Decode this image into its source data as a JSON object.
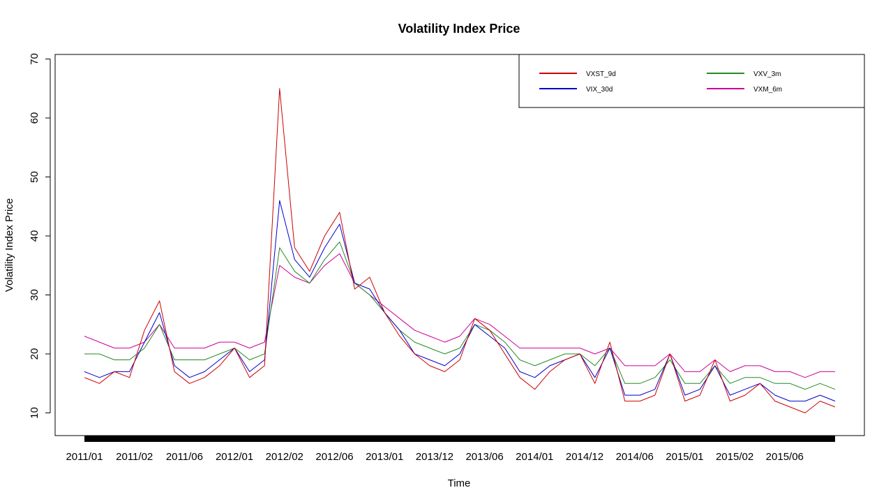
{
  "chart_data": {
    "type": "line",
    "title": "Volatility Index Price",
    "xlabel": "Time",
    "ylabel": "Volatility Index Price",
    "ylim": [
      5,
      70
    ],
    "yticks": [
      10,
      20,
      30,
      40,
      50,
      60,
      70
    ],
    "x_tick_labels": [
      "2011/01",
      "2011/02",
      "2011/06",
      "2012/01",
      "2012/02",
      "2012/06",
      "2013/01",
      "2013/12",
      "2013/06",
      "2014/01",
      "2014/12",
      "2014/06",
      "2015/01",
      "2015/02",
      "2015/06"
    ],
    "legend_position": "top-right",
    "grid": false,
    "colors": {
      "VXST_9d": "#cc0000",
      "VIX_30d": "#0000cc",
      "VXV_3m": "#228b22",
      "VXM_6m": "#cc0099"
    },
    "x": [
      0,
      2,
      4,
      6,
      8,
      10,
      12,
      14,
      16,
      18,
      20,
      22,
      24,
      26,
      28,
      30,
      32,
      34,
      36,
      38,
      40,
      42,
      44,
      46,
      48,
      50,
      52,
      54,
      56,
      58,
      60,
      62,
      64,
      66,
      68,
      70,
      72,
      74,
      76,
      78,
      80,
      82,
      84,
      86,
      88,
      90,
      92,
      94,
      96,
      98,
      100
    ],
    "series": [
      {
        "name": "VXST_9d",
        "values": [
          16,
          15,
          17,
          16,
          24,
          29,
          17,
          15,
          16,
          18,
          21,
          16,
          18,
          65,
          38,
          34,
          40,
          44,
          31,
          33,
          27,
          23,
          20,
          18,
          17,
          19,
          26,
          24,
          20,
          16,
          14,
          17,
          19,
          20,
          15,
          22,
          12,
          12,
          13,
          20,
          12,
          13,
          19,
          12,
          13,
          15,
          12,
          11,
          10,
          12,
          11
        ]
      },
      {
        "name": "VIX_30d",
        "values": [
          17,
          16,
          17,
          17,
          22,
          27,
          18,
          16,
          17,
          19,
          21,
          17,
          19,
          46,
          36,
          33,
          38,
          42,
          32,
          31,
          27,
          24,
          20,
          19,
          18,
          20,
          25,
          23,
          21,
          17,
          16,
          18,
          19,
          20,
          16,
          21,
          13,
          13,
          14,
          20,
          13,
          14,
          18,
          13,
          14,
          15,
          13,
          12,
          12,
          13,
          12
        ]
      },
      {
        "name": "VXV_3m",
        "values": [
          20,
          20,
          19,
          19,
          21,
          25,
          19,
          19,
          19,
          20,
          21,
          19,
          20,
          38,
          34,
          32,
          36,
          39,
          32,
          30,
          27,
          24,
          22,
          21,
          20,
          21,
          25,
          24,
          22,
          19,
          18,
          19,
          20,
          20,
          18,
          21,
          15,
          15,
          16,
          19,
          15,
          15,
          18,
          15,
          16,
          16,
          15,
          15,
          14,
          15,
          14
        ]
      },
      {
        "name": "VXM_6m",
        "values": [
          23,
          22,
          21,
          21,
          22,
          25,
          21,
          21,
          21,
          22,
          22,
          21,
          22,
          35,
          33,
          32,
          35,
          37,
          32,
          30,
          28,
          26,
          24,
          23,
          22,
          23,
          26,
          25,
          23,
          21,
          21,
          21,
          21,
          21,
          20,
          21,
          18,
          18,
          18,
          20,
          17,
          17,
          19,
          17,
          18,
          18,
          17,
          17,
          16,
          17,
          17
        ]
      }
    ]
  }
}
